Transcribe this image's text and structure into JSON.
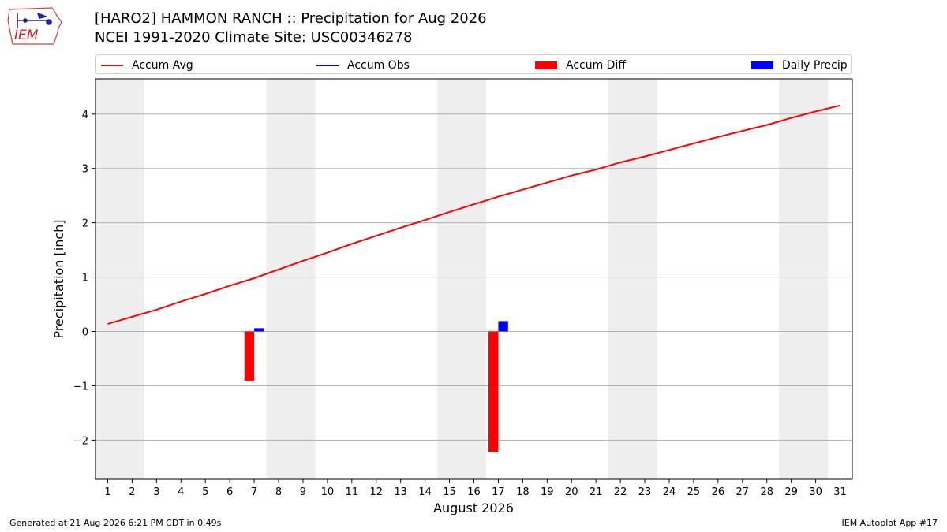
{
  "header": {
    "title_line1": "[HARO2] HAMMON RANCH :: Precipitation for Aug 2026",
    "title_line2": "NCEI 1991-2020 Climate Site: USC00346278",
    "logo_text": "IEM"
  },
  "footer": {
    "generated": "Generated at 21 Aug 2026 6:21 PM CDT in 0.49s",
    "app": "IEM Autoplot App #17"
  },
  "colors": {
    "accum_avg": "#ff0000",
    "accum_obs": "#0000ff",
    "accum_diff": "#ff0000",
    "daily_precip": "#0000ff",
    "weekend_shade": "#eeeeee",
    "grid": "#b0b0b0"
  },
  "chart_data": {
    "type": "bar",
    "xlabel": "August 2026",
    "ylabel": "Precipitation [inch]",
    "xlim": [
      0.5,
      31.5
    ],
    "ylim": [
      -2.72,
      4.65
    ],
    "yticks": [
      -2,
      -1,
      0,
      1,
      2,
      3,
      4
    ],
    "ytick_labels": [
      "−2",
      "−1",
      "0",
      "1",
      "2",
      "3",
      "4"
    ],
    "x": [
      1,
      2,
      3,
      4,
      5,
      6,
      7,
      8,
      9,
      10,
      11,
      12,
      13,
      14,
      15,
      16,
      17,
      18,
      19,
      20,
      21,
      22,
      23,
      24,
      25,
      26,
      27,
      28,
      29,
      30,
      31
    ],
    "grid": "y",
    "legend_position": "top",
    "weekend_ranges": [
      [
        0.5,
        2.5
      ],
      [
        7.5,
        9.5
      ],
      [
        14.5,
        16.5
      ],
      [
        21.5,
        23.5
      ],
      [
        28.5,
        30.5
      ]
    ],
    "series": [
      {
        "name": "Accum Avg",
        "kind": "line",
        "x": [
          1,
          2,
          3,
          4,
          5,
          6,
          7,
          8,
          9,
          10,
          11,
          12,
          13,
          14,
          15,
          16,
          17,
          18,
          19,
          20,
          21,
          22,
          23,
          24,
          25,
          26,
          27,
          28,
          29,
          30,
          31
        ],
        "values": [
          0.14,
          0.27,
          0.4,
          0.55,
          0.69,
          0.84,
          0.98,
          1.14,
          1.3,
          1.45,
          1.61,
          1.76,
          1.91,
          2.05,
          2.2,
          2.34,
          2.48,
          2.61,
          2.74,
          2.87,
          2.98,
          3.11,
          3.22,
          3.34,
          3.46,
          3.58,
          3.69,
          3.8,
          3.93,
          4.05,
          4.16
        ]
      },
      {
        "name": "Accum Obs",
        "kind": "line",
        "x": [],
        "values": []
      },
      {
        "name": "Accum Diff",
        "kind": "bar",
        "x": [
          7,
          17
        ],
        "values": [
          -0.91,
          -2.22
        ]
      },
      {
        "name": "Daily Precip",
        "kind": "bar",
        "x": [
          7,
          17
        ],
        "values": [
          0.06,
          0.19
        ]
      }
    ]
  }
}
